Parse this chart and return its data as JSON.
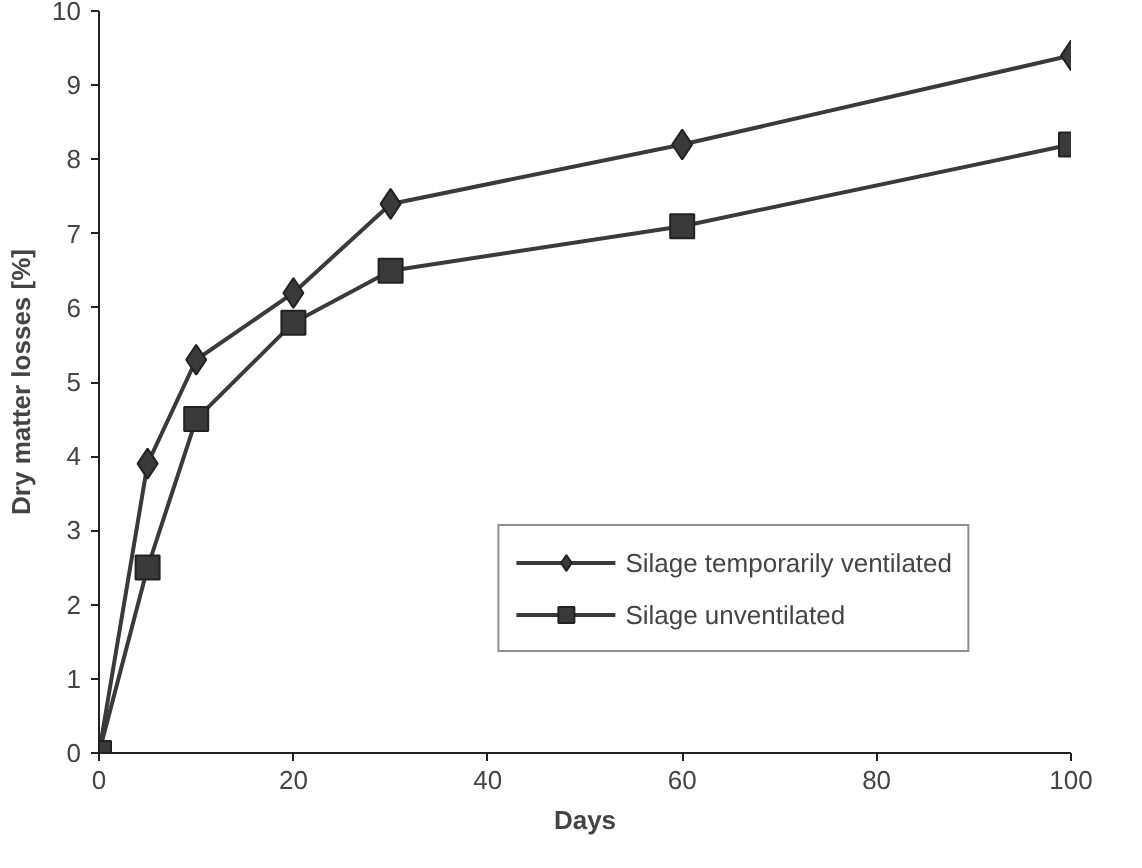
{
  "chart_data": {
    "type": "line",
    "xlabel": "Days",
    "ylabel": "Dry matter losses [%]",
    "x": [
      0,
      5,
      10,
      20,
      30,
      60,
      100
    ],
    "series": [
      {
        "name": "Silage temporarily ventilated",
        "color": "#3a3a3a",
        "marker": "diamond",
        "values": [
          0,
          3.9,
          5.3,
          6.2,
          7.4,
          8.2,
          9.4
        ]
      },
      {
        "name": "Silage unventilated",
        "color": "#3a3a3a",
        "marker": "square",
        "values": [
          0,
          2.5,
          4.5,
          5.8,
          6.5,
          7.1,
          8.2
        ]
      }
    ],
    "xlim": [
      0,
      100
    ],
    "xticks": [
      0,
      20,
      40,
      60,
      80,
      100
    ],
    "ylim": [
      0,
      10
    ],
    "yticks": [
      0,
      1,
      2,
      3,
      4,
      5,
      6,
      7,
      8,
      9,
      10
    ],
    "grid": false,
    "legend": "bottom right",
    "line_style": "solid"
  }
}
